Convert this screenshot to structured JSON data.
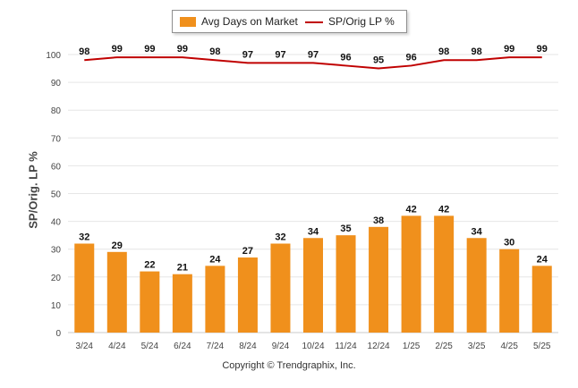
{
  "legend": {
    "bar_label": "Avg Days on Market",
    "line_label": "SP/Orig LP %"
  },
  "axis": {
    "ylabel": "SP/Orig. LP %",
    "yticks": [
      "0",
      "10",
      "20",
      "30",
      "40",
      "50",
      "60",
      "70",
      "80",
      "90",
      "100"
    ]
  },
  "footer": "Copyright © Trendgraphix, Inc.",
  "colors": {
    "bar": "#F0901C",
    "line": "#C00000",
    "grid": "#E6E6E6"
  },
  "chart_data": {
    "type": "bar",
    "categories": [
      "3/24",
      "4/24",
      "5/24",
      "6/24",
      "7/24",
      "8/24",
      "9/24",
      "10/24",
      "11/24",
      "12/24",
      "1/25",
      "2/25",
      "3/25",
      "4/25",
      "5/25"
    ],
    "series": [
      {
        "name": "Avg Days on Market",
        "type": "bar",
        "values": [
          32,
          29,
          22,
          21,
          24,
          27,
          32,
          34,
          35,
          38,
          42,
          42,
          34,
          30,
          24
        ]
      },
      {
        "name": "SP/Orig LP %",
        "type": "line",
        "values": [
          98,
          99,
          99,
          99,
          98,
          97,
          97,
          97,
          96,
          95,
          96,
          98,
          98,
          99,
          99
        ]
      }
    ],
    "title": "",
    "xlabel": "",
    "ylabel": "SP/Orig. LP %",
    "ylim": [
      0,
      100
    ],
    "grid": true,
    "legend_position": "top-center"
  }
}
